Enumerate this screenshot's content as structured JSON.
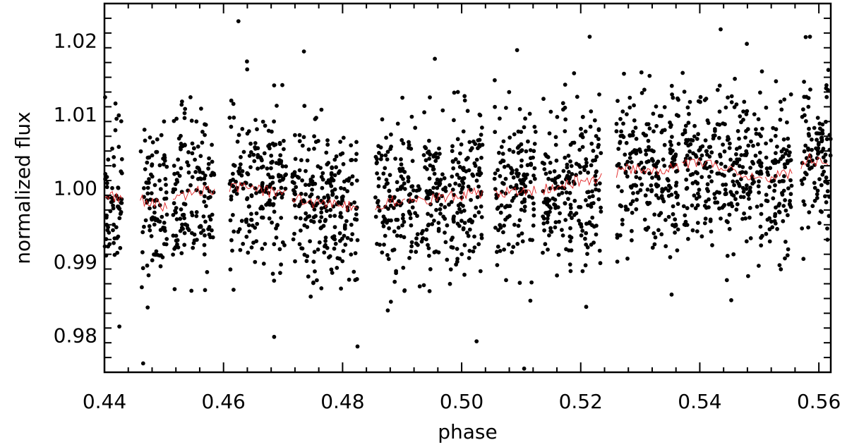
{
  "chart_data": {
    "type": "scatter",
    "title": "",
    "xlabel": "phase",
    "ylabel": "normalized flux",
    "xlim": [
      0.44,
      0.562
    ],
    "ylim": [
      0.975,
      1.025
    ],
    "x_ticks": [
      0.44,
      0.46,
      0.48,
      0.5,
      0.52,
      0.54,
      0.56
    ],
    "x_tick_labels": [
      "0.44",
      "0.46",
      "0.48",
      "0.50",
      "0.52",
      "0.54",
      "0.56"
    ],
    "y_ticks": [
      0.98,
      0.99,
      1.0,
      1.01,
      1.02
    ],
    "y_tick_labels": [
      "0.98",
      "0.99",
      "1.00",
      "1.01",
      "1.02"
    ],
    "grid": false,
    "legend": "none",
    "observation_segments": [
      {
        "x_start": 0.44,
        "x_end": 0.443
      },
      {
        "x_start": 0.446,
        "x_end": 0.4505
      },
      {
        "x_start": 0.4515,
        "x_end": 0.4585
      },
      {
        "x_start": 0.461,
        "x_end": 0.4705
      },
      {
        "x_start": 0.4715,
        "x_end": 0.4825
      },
      {
        "x_start": 0.4855,
        "x_end": 0.4905
      },
      {
        "x_start": 0.491,
        "x_end": 0.5035
      },
      {
        "x_start": 0.5055,
        "x_end": 0.5125
      },
      {
        "x_start": 0.5135,
        "x_end": 0.5235
      },
      {
        "x_start": 0.526,
        "x_end": 0.5365
      },
      {
        "x_start": 0.537,
        "x_end": 0.5505
      },
      {
        "x_start": 0.551,
        "x_end": 0.5555
      },
      {
        "x_start": 0.557,
        "x_end": 0.562
      }
    ],
    "series": [
      {
        "kind": "points",
        "color": "#000000",
        "scatter_sigma": 0.0058,
        "notable_points": [
          {
            "x": 0.4625,
            "y": 1.0226
          },
          {
            "x": 0.4735,
            "y": 1.0185
          },
          {
            "x": 0.4955,
            "y": 1.0175
          },
          {
            "x": 0.5215,
            "y": 1.0205
          },
          {
            "x": 0.5435,
            "y": 1.0215
          },
          {
            "x": 0.5585,
            "y": 1.0205
          },
          {
            "x": 0.4465,
            "y": 0.9762
          },
          {
            "x": 0.4825,
            "y": 0.9785
          },
          {
            "x": 0.5025,
            "y": 0.9792
          },
          {
            "x": 0.5105,
            "y": 0.9755
          },
          {
            "x": 0.4685,
            "y": 0.9798
          },
          {
            "x": 0.4425,
            "y": 0.9812
          }
        ]
      },
      {
        "kind": "binned-line",
        "color": "#e02020",
        "trend": [
          {
            "x": 0.44,
            "y": 0.999
          },
          {
            "x": 0.446,
            "y": 0.9985
          },
          {
            "x": 0.45,
            "y": 0.9975
          },
          {
            "x": 0.455,
            "y": 0.9995
          },
          {
            "x": 0.46,
            "y": 1.0
          },
          {
            "x": 0.465,
            "y": 1.0
          },
          {
            "x": 0.47,
            "y": 0.999
          },
          {
            "x": 0.475,
            "y": 0.998
          },
          {
            "x": 0.48,
            "y": 0.9975
          },
          {
            "x": 0.485,
            "y": 0.9975
          },
          {
            "x": 0.49,
            "y": 0.9985
          },
          {
            "x": 0.495,
            "y": 0.9985
          },
          {
            "x": 0.5,
            "y": 0.999
          },
          {
            "x": 0.505,
            "y": 0.9995
          },
          {
            "x": 0.51,
            "y": 0.9995
          },
          {
            "x": 0.515,
            "y": 1.0
          },
          {
            "x": 0.52,
            "y": 1.001
          },
          {
            "x": 0.523,
            "y": 1.001
          },
          {
            "x": 0.527,
            "y": 1.0025
          },
          {
            "x": 0.533,
            "y": 1.0025
          },
          {
            "x": 0.54,
            "y": 1.0035
          },
          {
            "x": 0.545,
            "y": 1.0025
          },
          {
            "x": 0.55,
            "y": 1.001
          },
          {
            "x": 0.555,
            "y": 1.002
          },
          {
            "x": 0.558,
            "y": 1.004
          },
          {
            "x": 0.562,
            "y": 1.003
          }
        ]
      }
    ]
  }
}
